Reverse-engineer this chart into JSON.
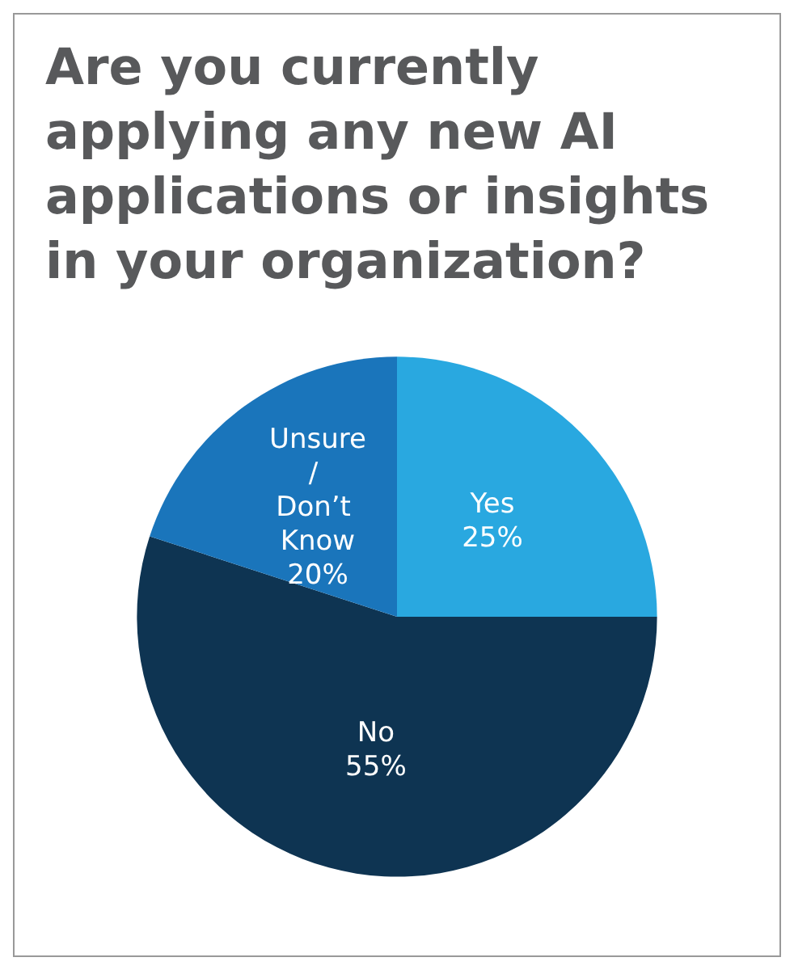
{
  "chart_data": {
    "type": "pie",
    "title": "Are you currently applying any new AI applications or insights in your organization?",
    "categories": [
      "Yes",
      "No",
      "Unsure/ Don’t Know"
    ],
    "values": [
      25,
      55,
      20
    ],
    "colors": [
      "#29a8e0",
      "#0e3452",
      "#1a75bb"
    ],
    "value_labels": [
      "25%",
      "55%",
      "20%"
    ]
  }
}
